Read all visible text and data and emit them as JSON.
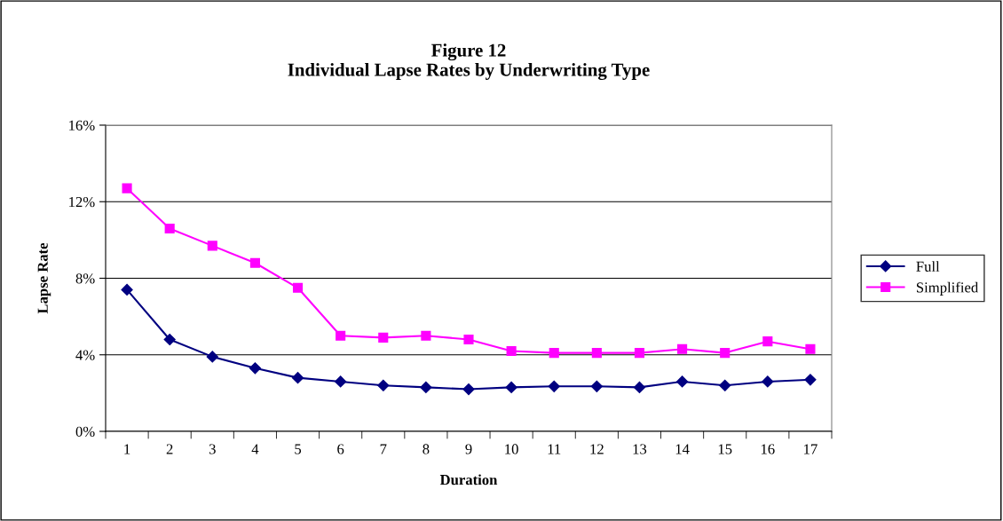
{
  "chart_data": {
    "type": "line",
    "title": "Figure 12\nIndividual Lapse Rates by Underwriting Type",
    "xlabel": "Duration",
    "ylabel": "Lapse Rate",
    "categories": [
      "1",
      "2",
      "3",
      "4",
      "5",
      "6",
      "7",
      "8",
      "9",
      "10",
      "11",
      "12",
      "13",
      "14",
      "15",
      "16",
      "17"
    ],
    "series": [
      {
        "name": "Full",
        "color": "#000080",
        "marker": "diamond",
        "values": [
          7.4,
          4.8,
          3.9,
          3.3,
          2.8,
          2.6,
          2.4,
          2.3,
          2.2,
          2.3,
          2.35,
          2.35,
          2.3,
          2.6,
          2.4,
          2.6,
          2.7
        ]
      },
      {
        "name": "Simplified",
        "color": "#ff00ff",
        "marker": "square",
        "values": [
          12.7,
          10.6,
          9.7,
          8.8,
          7.5,
          5.0,
          4.9,
          5.0,
          4.8,
          4.2,
          4.1,
          4.1,
          4.1,
          4.3,
          4.1,
          4.7,
          4.3
        ]
      }
    ],
    "ylim": [
      0,
      16
    ],
    "yticks": [
      {
        "value": 0,
        "label": "0%"
      },
      {
        "value": 4,
        "label": "4%"
      },
      {
        "value": 8,
        "label": "8%"
      },
      {
        "value": 12,
        "label": "12%"
      },
      {
        "value": 16,
        "label": "16%"
      }
    ],
    "grid": "y",
    "legend": "right",
    "line_style": "solid"
  }
}
